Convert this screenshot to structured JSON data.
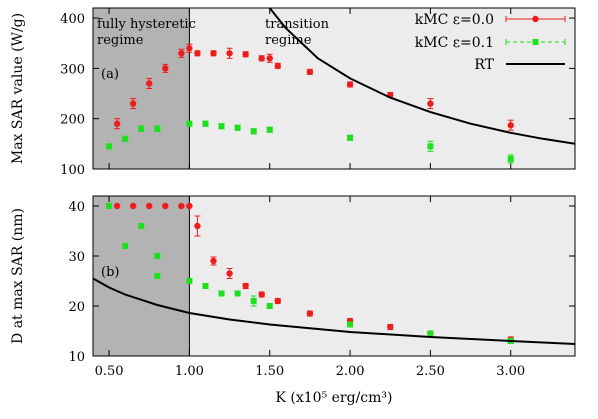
{
  "chart_data": [
    {
      "type": "scatter",
      "panel_label": "(a)",
      "ylabel": "Max SAR value (W/g)",
      "ylim": [
        100,
        420
      ],
      "yticks": [
        100,
        200,
        300,
        400
      ],
      "xlim": [
        0.4,
        3.4
      ],
      "annotations": [
        {
          "lines": [
            "fully hysteretic",
            "regime"
          ]
        },
        {
          "lines": [
            "transition",
            "regime"
          ]
        }
      ],
      "shaded_regions": [
        {
          "x": [
            0.4,
            1.0
          ],
          "color": "#b3b3b3"
        },
        {
          "x": [
            1.0,
            3.4
          ],
          "color": "#ececec"
        }
      ],
      "series": [
        {
          "name": "kMC ε=0.0",
          "marker": "circle",
          "color": "#ee1c1c",
          "points": [
            {
              "x": 0.55,
              "y": 190,
              "err": 10
            },
            {
              "x": 0.65,
              "y": 230,
              "err": 10
            },
            {
              "x": 0.75,
              "y": 270,
              "err": 10
            },
            {
              "x": 0.85,
              "y": 300,
              "err": 8
            },
            {
              "x": 0.95,
              "y": 330,
              "err": 8
            },
            {
              "x": 1.0,
              "y": 340,
              "err": 8
            },
            {
              "x": 1.05,
              "y": 330,
              "err": 5
            },
            {
              "x": 1.15,
              "y": 330,
              "err": 5
            },
            {
              "x": 1.25,
              "y": 330,
              "err": 10
            },
            {
              "x": 1.35,
              "y": 328,
              "err": 5
            },
            {
              "x": 1.45,
              "y": 320,
              "err": 5
            },
            {
              "x": 1.5,
              "y": 320,
              "err": 8
            },
            {
              "x": 1.55,
              "y": 305,
              "err": 5
            },
            {
              "x": 1.75,
              "y": 293,
              "err": 5
            },
            {
              "x": 2.0,
              "y": 268,
              "err": 5
            },
            {
              "x": 2.25,
              "y": 247,
              "err": 5
            },
            {
              "x": 2.5,
              "y": 230,
              "err": 10
            },
            {
              "x": 3.0,
              "y": 187,
              "err": 10
            }
          ]
        },
        {
          "name": "kMC ε=0.1",
          "marker": "square",
          "color": "#1ee01e",
          "points": [
            {
              "x": 0.5,
              "y": 145,
              "err": 5
            },
            {
              "x": 0.6,
              "y": 160,
              "err": 5
            },
            {
              "x": 0.7,
              "y": 180,
              "err": 5
            },
            {
              "x": 0.8,
              "y": 180,
              "err": 5
            },
            {
              "x": 1.0,
              "y": 190,
              "err": 5
            },
            {
              "x": 1.1,
              "y": 190,
              "err": 5
            },
            {
              "x": 1.2,
              "y": 185,
              "err": 5
            },
            {
              "x": 1.3,
              "y": 182,
              "err": 5
            },
            {
              "x": 1.4,
              "y": 175,
              "err": 5
            },
            {
              "x": 1.5,
              "y": 178,
              "err": 5
            },
            {
              "x": 2.0,
              "y": 162,
              "err": 5
            },
            {
              "x": 2.5,
              "y": 145,
              "err": 10
            },
            {
              "x": 3.0,
              "y": 120,
              "err": 8
            }
          ]
        },
        {
          "name": "RT",
          "type": "line",
          "color": "#000000",
          "points": [
            {
              "x": 1.5,
              "y": 420
            },
            {
              "x": 1.6,
              "y": 380
            },
            {
              "x": 1.8,
              "y": 320
            },
            {
              "x": 2.0,
              "y": 280
            },
            {
              "x": 2.25,
              "y": 242
            },
            {
              "x": 2.5,
              "y": 213
            },
            {
              "x": 2.75,
              "y": 190
            },
            {
              "x": 3.0,
              "y": 172
            },
            {
              "x": 3.2,
              "y": 160
            },
            {
              "x": 3.4,
              "y": 150
            }
          ]
        }
      ],
      "legend": {
        "placement": "top-right"
      }
    },
    {
      "type": "scatter",
      "panel_label": "(b)",
      "ylabel": "D at max SAR (nm)",
      "xlabel": "K (x10⁵ erg/cm³)",
      "ylim": [
        10,
        42
      ],
      "yticks": [
        10,
        20,
        30,
        40
      ],
      "xlim": [
        0.4,
        3.4
      ],
      "xticks": [
        0.5,
        1.0,
        1.5,
        2.0,
        2.5,
        3.0
      ],
      "xtick_labels": [
        "0.50",
        "1.00",
        "1.50",
        "2.00",
        "2.50",
        "3.00"
      ],
      "shaded_regions": [
        {
          "x": [
            0.4,
            1.0
          ],
          "color": "#b3b3b3"
        },
        {
          "x": [
            1.0,
            3.4
          ],
          "color": "#ececec"
        }
      ],
      "series": [
        {
          "name": "kMC ε=0.0",
          "marker": "circle",
          "color": "#ee1c1c",
          "points": [
            {
              "x": 0.55,
              "y": 40,
              "err": 0
            },
            {
              "x": 0.65,
              "y": 40,
              "err": 0
            },
            {
              "x": 0.75,
              "y": 40,
              "err": 0
            },
            {
              "x": 0.85,
              "y": 40,
              "err": 0
            },
            {
              "x": 0.95,
              "y": 40,
              "err": 0
            },
            {
              "x": 1.0,
              "y": 40,
              "err": 0
            },
            {
              "x": 1.05,
              "y": 36,
              "err": 2
            },
            {
              "x": 1.15,
              "y": 29,
              "err": 0.8
            },
            {
              "x": 1.25,
              "y": 26.5,
              "err": 1
            },
            {
              "x": 1.35,
              "y": 24,
              "err": 0.5
            },
            {
              "x": 1.45,
              "y": 22.3,
              "err": 0.5
            },
            {
              "x": 1.55,
              "y": 21,
              "err": 0.5
            },
            {
              "x": 1.75,
              "y": 18.5,
              "err": 0.5
            },
            {
              "x": 2.0,
              "y": 17,
              "err": 0.5
            },
            {
              "x": 2.25,
              "y": 15.8,
              "err": 0.5
            },
            {
              "x": 2.5,
              "y": 14.5,
              "err": 0.5
            },
            {
              "x": 3.0,
              "y": 13.3,
              "err": 0.5
            }
          ]
        },
        {
          "name": "kMC ε=0.1",
          "marker": "square",
          "color": "#1ee01e",
          "points": [
            {
              "x": 0.5,
              "y": 40,
              "err": 0
            },
            {
              "x": 0.6,
              "y": 32,
              "err": 0
            },
            {
              "x": 0.7,
              "y": 36,
              "err": 0
            },
            {
              "x": 0.8,
              "y": 30,
              "err": 0
            },
            {
              "x": 0.8,
              "y": 26,
              "err": 0
            },
            {
              "x": 1.0,
              "y": 25,
              "err": 0
            },
            {
              "x": 1.1,
              "y": 24,
              "err": 0
            },
            {
              "x": 1.2,
              "y": 22.5,
              "err": 0
            },
            {
              "x": 1.3,
              "y": 22.5,
              "err": 0
            },
            {
              "x": 1.4,
              "y": 21,
              "err": 1
            },
            {
              "x": 1.5,
              "y": 20,
              "err": 0.5
            },
            {
              "x": 2.0,
              "y": 16.3,
              "err": 0.5
            },
            {
              "x": 2.5,
              "y": 14.5,
              "err": 0.5
            },
            {
              "x": 3.0,
              "y": 13,
              "err": 0.5
            }
          ]
        },
        {
          "name": "RT",
          "type": "line",
          "color": "#000000",
          "points": [
            {
              "x": 0.4,
              "y": 25.5
            },
            {
              "x": 0.5,
              "y": 23.7
            },
            {
              "x": 0.6,
              "y": 22.3
            },
            {
              "x": 0.8,
              "y": 20.2
            },
            {
              "x": 1.0,
              "y": 18.6
            },
            {
              "x": 1.25,
              "y": 17.3
            },
            {
              "x": 1.5,
              "y": 16.3
            },
            {
              "x": 2.0,
              "y": 14.8
            },
            {
              "x": 2.5,
              "y": 13.8
            },
            {
              "x": 3.0,
              "y": 13.0
            },
            {
              "x": 3.4,
              "y": 12.4
            }
          ]
        }
      ]
    }
  ]
}
